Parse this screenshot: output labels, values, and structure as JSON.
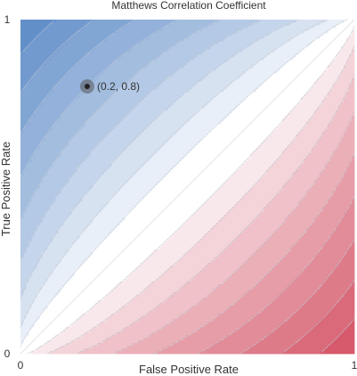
{
  "chart_data": {
    "type": "heatmap",
    "title": "Matthews Correlation Coefficient",
    "xlabel": "False Positive Rate",
    "ylabel": "True Positive Rate",
    "xlim": [
      0,
      1
    ],
    "ylim": [
      0,
      1
    ],
    "x_ticks": [
      {
        "value": 0,
        "label": "0"
      },
      {
        "value": 1,
        "label": "1"
      }
    ],
    "y_ticks": [
      {
        "value": 0,
        "label": "0"
      },
      {
        "value": 1,
        "label": "1"
      }
    ],
    "z_range": [
      -1,
      1
    ],
    "contour_step": 0.1,
    "positive_color": "#4e80c2",
    "negative_color": "#d04358",
    "neutral_color": "#ffffff",
    "contour_line_color": "#bfc6d2",
    "grid": false,
    "legend": "none",
    "marker": {
      "x": 0.2,
      "y": 0.8,
      "label": "(0.2, 0.8)",
      "color": "#222222"
    }
  }
}
